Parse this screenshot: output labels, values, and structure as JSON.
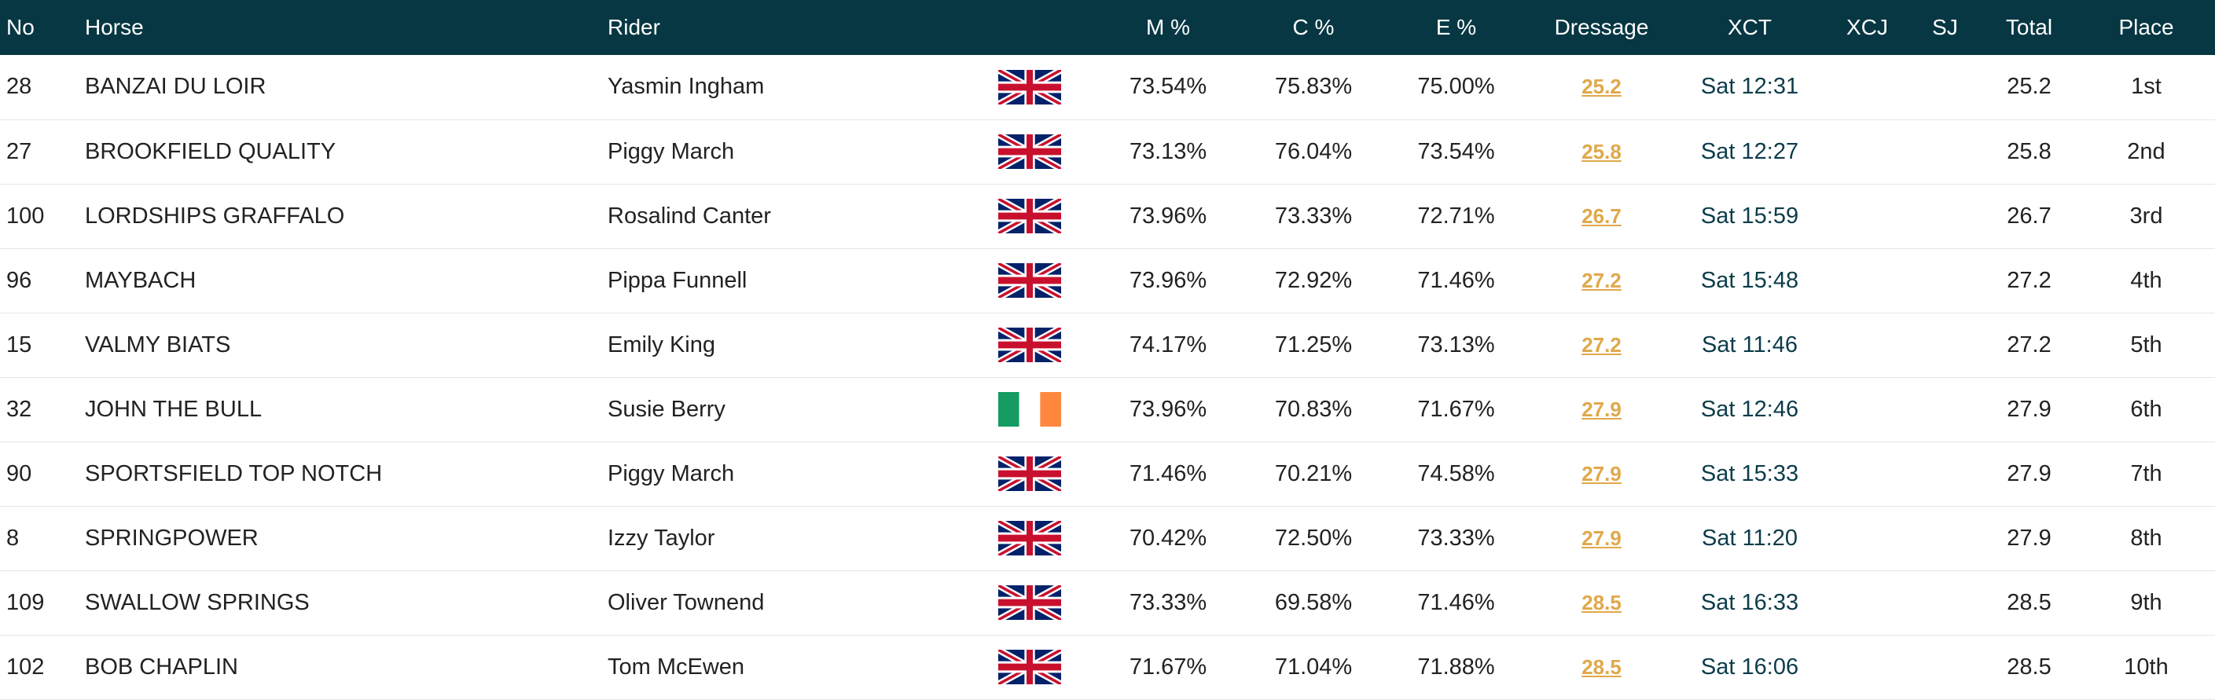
{
  "columns": {
    "no": "No",
    "horse": "Horse",
    "rider": "Rider",
    "m": "M %",
    "c": "C %",
    "e": "E %",
    "dressage": "Dressage",
    "xct": "XCT",
    "xcj": "XCJ",
    "sj": "SJ",
    "total": "Total",
    "place": "Place"
  },
  "rows": [
    {
      "no": "28",
      "horse": "BANZAI DU LOIR",
      "rider": "Yasmin Ingham",
      "flag": "gb",
      "m": "73.54%",
      "c": "75.83%",
      "e": "75.00%",
      "dressage": "25.2",
      "xct": "Sat 12:31",
      "xcj": "",
      "sj": "",
      "total": "25.2",
      "place": "1st"
    },
    {
      "no": "27",
      "horse": "BROOKFIELD QUALITY",
      "rider": "Piggy March",
      "flag": "gb",
      "m": "73.13%",
      "c": "76.04%",
      "e": "73.54%",
      "dressage": "25.8",
      "xct": "Sat 12:27",
      "xcj": "",
      "sj": "",
      "total": "25.8",
      "place": "2nd"
    },
    {
      "no": "100",
      "horse": "LORDSHIPS GRAFFALO",
      "rider": "Rosalind Canter",
      "flag": "gb",
      "m": "73.96%",
      "c": "73.33%",
      "e": "72.71%",
      "dressage": "26.7",
      "xct": "Sat 15:59",
      "xcj": "",
      "sj": "",
      "total": "26.7",
      "place": "3rd"
    },
    {
      "no": "96",
      "horse": "MAYBACH",
      "rider": "Pippa Funnell",
      "flag": "gb",
      "m": "73.96%",
      "c": "72.92%",
      "e": "71.46%",
      "dressage": "27.2",
      "xct": "Sat 15:48",
      "xcj": "",
      "sj": "",
      "total": "27.2",
      "place": "4th"
    },
    {
      "no": "15",
      "horse": "VALMY BIATS",
      "rider": "Emily King",
      "flag": "gb",
      "m": "74.17%",
      "c": "71.25%",
      "e": "73.13%",
      "dressage": "27.2",
      "xct": "Sat 11:46",
      "xcj": "",
      "sj": "",
      "total": "27.2",
      "place": "5th"
    },
    {
      "no": "32",
      "horse": "JOHN THE BULL",
      "rider": "Susie Berry",
      "flag": "ie",
      "m": "73.96%",
      "c": "70.83%",
      "e": "71.67%",
      "dressage": "27.9",
      "xct": "Sat 12:46",
      "xcj": "",
      "sj": "",
      "total": "27.9",
      "place": "6th"
    },
    {
      "no": "90",
      "horse": "SPORTSFIELD TOP NOTCH",
      "rider": "Piggy March",
      "flag": "gb",
      "m": "71.46%",
      "c": "70.21%",
      "e": "74.58%",
      "dressage": "27.9",
      "xct": "Sat 15:33",
      "xcj": "",
      "sj": "",
      "total": "27.9",
      "place": "7th"
    },
    {
      "no": "8",
      "horse": "SPRINGPOWER",
      "rider": "Izzy Taylor",
      "flag": "gb",
      "m": "70.42%",
      "c": "72.50%",
      "e": "73.33%",
      "dressage": "27.9",
      "xct": "Sat 11:20",
      "xcj": "",
      "sj": "",
      "total": "27.9",
      "place": "8th"
    },
    {
      "no": "109",
      "horse": "SWALLOW SPRINGS",
      "rider": "Oliver Townend",
      "flag": "gb",
      "m": "73.33%",
      "c": "69.58%",
      "e": "71.46%",
      "dressage": "28.5",
      "xct": "Sat 16:33",
      "xcj": "",
      "sj": "",
      "total": "28.5",
      "place": "9th"
    },
    {
      "no": "102",
      "horse": "BOB CHAPLIN",
      "rider": "Tom McEwen",
      "flag": "gb",
      "m": "71.67%",
      "c": "71.04%",
      "e": "71.88%",
      "dressage": "28.5",
      "xct": "Sat 16:06",
      "xcj": "",
      "sj": "",
      "total": "28.5",
      "place": "10th"
    }
  ],
  "colors": {
    "header_bg": "#073743",
    "dressage_link": "#e0a84a",
    "xct_text": "#0c3c4a"
  }
}
